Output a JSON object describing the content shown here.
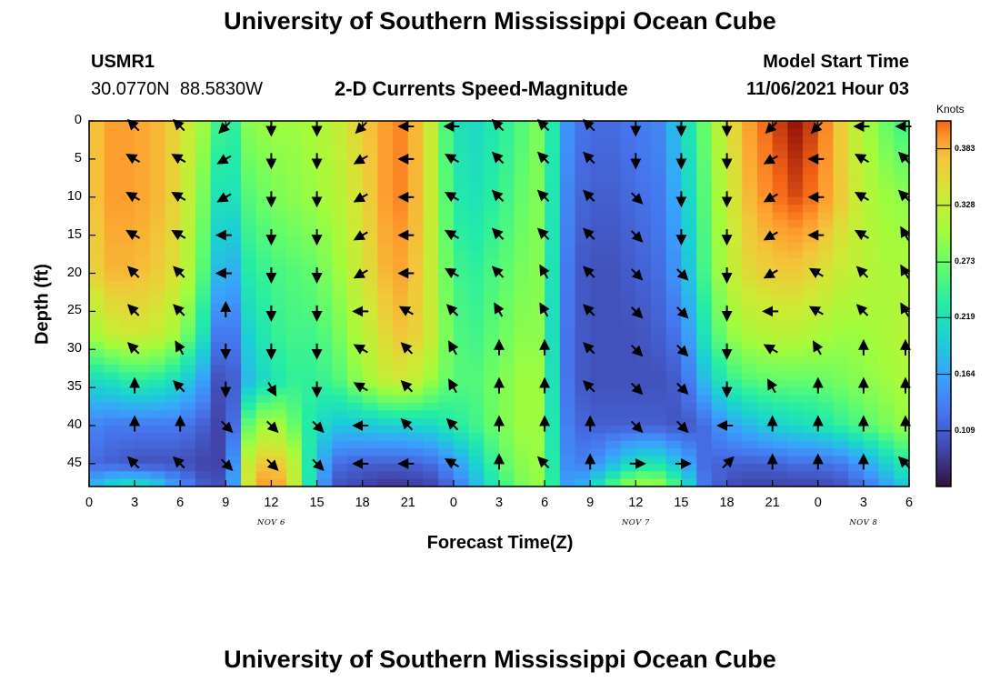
{
  "header": {
    "title": "University of Southern Mississippi Ocean Cube",
    "station_id": "USMR1",
    "station_coords": "30.0770N  88.5830W",
    "product_title": "2-D Currents Speed-Magnitude",
    "model_start_label": "Model Start Time",
    "model_start_value": "11/06/2021 Hour 03",
    "footer_title": "University of Southern Mississippi Ocean Cube"
  },
  "chart_data": {
    "type": "heatmap",
    "title": "2-D Currents Speed-Magnitude",
    "xlabel": "Forecast Time(Z)",
    "ylabel": "Depth (ft)",
    "x_tick_labels": [
      "0",
      "3",
      "6",
      "9",
      "12",
      "15",
      "18",
      "21",
      "0",
      "3",
      "6",
      "9",
      "12",
      "15",
      "18",
      "21",
      "0",
      "3",
      "6"
    ],
    "y_tick_labels": [
      "0",
      "5",
      "10",
      "15",
      "20",
      "25",
      "30",
      "35",
      "40",
      "45"
    ],
    "y_range": [
      0,
      48
    ],
    "x_range_hours": [
      0,
      54
    ],
    "date_labels": [
      {
        "label": "NOV 6",
        "hour": 12
      },
      {
        "label": "NOV 7",
        "hour": 36
      },
      {
        "label": "NOV 8",
        "hour": 51
      }
    ],
    "colorbar": {
      "unit": "Knots",
      "range": [
        0.055,
        0.41
      ],
      "ticks": [
        "0.383",
        "0.328",
        "0.273",
        "0.219",
        "0.164",
        "0.109"
      ],
      "tick_values": [
        0.383,
        0.328,
        0.273,
        0.219,
        0.164,
        0.109
      ]
    },
    "speed_control_points": {
      "hours": [
        0,
        1.5,
        3,
        4.5,
        6,
        7.5,
        8.5,
        9,
        9.5,
        10.5,
        12,
        13.5,
        15,
        16.5,
        18,
        19.5,
        21,
        22.5,
        24,
        25.5,
        27,
        28.5,
        30,
        31,
        32,
        33,
        34.5,
        36,
        37.5,
        39,
        40.5,
        42,
        43.5,
        45,
        46.5,
        48,
        49.5,
        51,
        52.5,
        54
      ],
      "depths": [
        0,
        10,
        20,
        28,
        34,
        40,
        45,
        48
      ],
      "values": [
        [
          0.36,
          0.38,
          0.38,
          0.37,
          0.35,
          0.3,
          0.25,
          0.22,
          0.24,
          0.29,
          0.3,
          0.3,
          0.31,
          0.33,
          0.36,
          0.38,
          0.39,
          0.33,
          0.22,
          0.21,
          0.23,
          0.26,
          0.29,
          0.17,
          0.13,
          0.12,
          0.12,
          0.13,
          0.14,
          0.2,
          0.27,
          0.34,
          0.38,
          0.4,
          0.41,
          0.4,
          0.36,
          0.31,
          0.27,
          0.24
        ],
        [
          0.36,
          0.38,
          0.38,
          0.37,
          0.35,
          0.28,
          0.22,
          0.2,
          0.22,
          0.26,
          0.28,
          0.29,
          0.3,
          0.32,
          0.35,
          0.38,
          0.39,
          0.33,
          0.23,
          0.22,
          0.24,
          0.27,
          0.29,
          0.16,
          0.12,
          0.11,
          0.11,
          0.12,
          0.13,
          0.18,
          0.26,
          0.33,
          0.37,
          0.39,
          0.4,
          0.39,
          0.36,
          0.32,
          0.3,
          0.29
        ],
        [
          0.35,
          0.37,
          0.37,
          0.36,
          0.34,
          0.26,
          0.18,
          0.15,
          0.17,
          0.23,
          0.25,
          0.26,
          0.27,
          0.3,
          0.34,
          0.37,
          0.38,
          0.33,
          0.25,
          0.24,
          0.26,
          0.28,
          0.29,
          0.15,
          0.11,
          0.1,
          0.1,
          0.11,
          0.12,
          0.16,
          0.25,
          0.32,
          0.35,
          0.36,
          0.36,
          0.35,
          0.33,
          0.32,
          0.31,
          0.31
        ],
        [
          0.3,
          0.33,
          0.34,
          0.33,
          0.3,
          0.22,
          0.13,
          0.11,
          0.13,
          0.2,
          0.24,
          0.25,
          0.25,
          0.28,
          0.32,
          0.35,
          0.37,
          0.33,
          0.26,
          0.25,
          0.27,
          0.29,
          0.29,
          0.14,
          0.11,
          0.1,
          0.1,
          0.1,
          0.11,
          0.13,
          0.22,
          0.29,
          0.31,
          0.32,
          0.32,
          0.31,
          0.3,
          0.3,
          0.31,
          0.32
        ],
        [
          0.21,
          0.22,
          0.24,
          0.23,
          0.21,
          0.16,
          0.1,
          0.08,
          0.11,
          0.18,
          0.22,
          0.24,
          0.24,
          0.26,
          0.3,
          0.33,
          0.34,
          0.3,
          0.26,
          0.26,
          0.28,
          0.3,
          0.3,
          0.14,
          0.11,
          0.1,
          0.1,
          0.1,
          0.1,
          0.11,
          0.18,
          0.24,
          0.26,
          0.27,
          0.27,
          0.27,
          0.28,
          0.29,
          0.3,
          0.31
        ],
        [
          0.14,
          0.13,
          0.13,
          0.13,
          0.13,
          0.11,
          0.09,
          0.08,
          0.12,
          0.27,
          0.32,
          0.27,
          0.21,
          0.19,
          0.19,
          0.2,
          0.2,
          0.21,
          0.23,
          0.25,
          0.28,
          0.3,
          0.3,
          0.15,
          0.12,
          0.11,
          0.11,
          0.11,
          0.11,
          0.1,
          0.12,
          0.16,
          0.18,
          0.2,
          0.21,
          0.22,
          0.24,
          0.26,
          0.28,
          0.3
        ],
        [
          0.12,
          0.11,
          0.1,
          0.1,
          0.1,
          0.09,
          0.09,
          0.1,
          0.15,
          0.33,
          0.38,
          0.32,
          0.18,
          0.12,
          0.11,
          0.11,
          0.11,
          0.12,
          0.15,
          0.2,
          0.26,
          0.29,
          0.3,
          0.16,
          0.13,
          0.14,
          0.18,
          0.22,
          0.22,
          0.18,
          0.12,
          0.11,
          0.11,
          0.11,
          0.12,
          0.12,
          0.13,
          0.16,
          0.2,
          0.24
        ],
        [
          0.17,
          0.21,
          0.23,
          0.2,
          0.15,
          0.11,
          0.1,
          0.11,
          0.16,
          0.34,
          0.4,
          0.33,
          0.17,
          0.1,
          0.09,
          0.08,
          0.08,
          0.09,
          0.12,
          0.18,
          0.24,
          0.28,
          0.3,
          0.17,
          0.15,
          0.2,
          0.26,
          0.31,
          0.3,
          0.24,
          0.13,
          0.1,
          0.09,
          0.09,
          0.09,
          0.09,
          0.1,
          0.12,
          0.16,
          0.2
        ]
      ]
    },
    "vector_grid": {
      "hours": [
        3,
        6,
        9,
        12,
        15,
        18,
        21,
        24,
        27,
        30,
        33,
        36,
        39,
        42,
        45,
        48,
        51,
        54
      ],
      "depths": [
        0,
        5,
        10,
        15,
        20,
        25,
        30,
        35,
        40,
        45
      ],
      "directions_deg": [
        [
          315,
          315,
          225,
          180,
          180,
          225,
          270,
          270,
          315,
          315,
          315,
          180,
          180,
          180,
          225,
          225,
          270,
          270
        ],
        [
          300,
          300,
          240,
          180,
          180,
          240,
          270,
          300,
          315,
          315,
          315,
          180,
          180,
          180,
          240,
          270,
          300,
          315
        ],
        [
          300,
          300,
          240,
          180,
          180,
          240,
          270,
          300,
          315,
          315,
          315,
          135,
          180,
          180,
          240,
          270,
          300,
          315
        ],
        [
          300,
          300,
          270,
          180,
          180,
          240,
          270,
          300,
          315,
          315,
          315,
          135,
          180,
          180,
          240,
          270,
          300,
          330
        ],
        [
          315,
          315,
          270,
          180,
          180,
          240,
          270,
          300,
          315,
          330,
          315,
          135,
          135,
          180,
          240,
          300,
          315,
          330
        ],
        [
          315,
          315,
          0,
          180,
          180,
          270,
          300,
          315,
          330,
          330,
          315,
          135,
          135,
          180,
          270,
          300,
          315,
          330
        ],
        [
          315,
          330,
          180,
          180,
          180,
          300,
          315,
          330,
          0,
          0,
          315,
          135,
          135,
          180,
          300,
          330,
          0,
          0
        ],
        [
          0,
          315,
          180,
          150,
          180,
          300,
          315,
          330,
          0,
          0,
          315,
          135,
          135,
          180,
          330,
          0,
          0,
          0
        ],
        [
          0,
          0,
          135,
          135,
          135,
          270,
          315,
          315,
          0,
          0,
          0,
          135,
          135,
          270,
          0,
          0,
          0,
          0
        ],
        [
          315,
          315,
          135,
          135,
          135,
          270,
          270,
          300,
          0,
          315,
          0,
          90,
          90,
          45,
          0,
          0,
          0,
          315
        ]
      ]
    }
  }
}
